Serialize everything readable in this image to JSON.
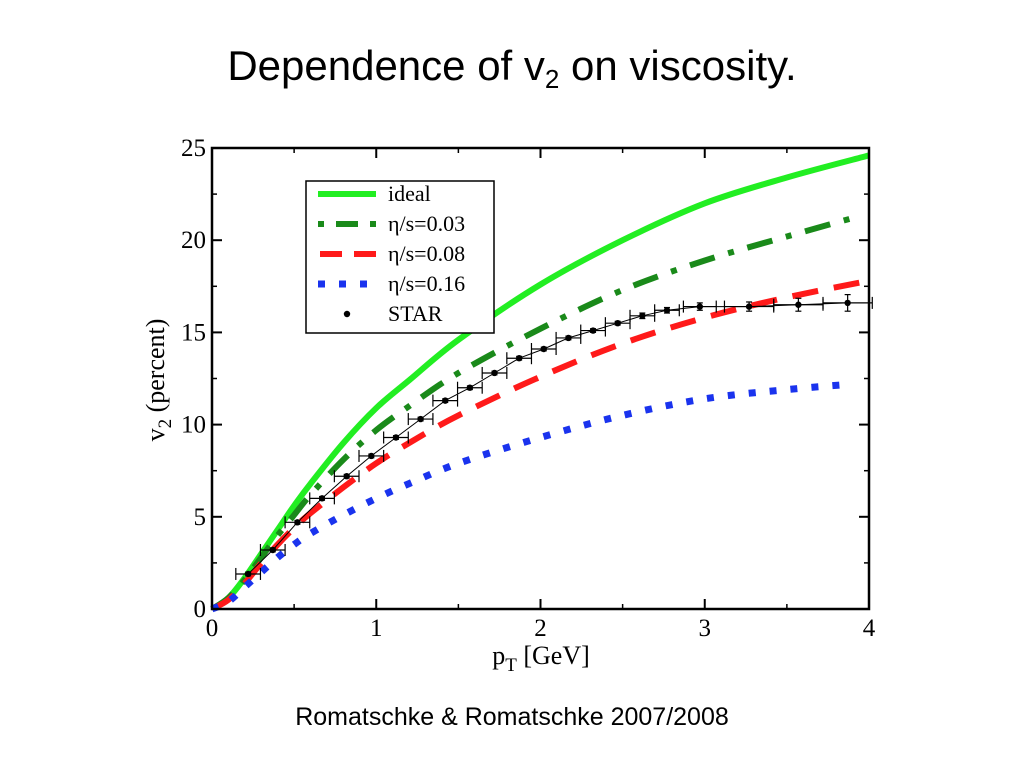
{
  "slide": {
    "title_main": "Dependence of v",
    "title_sub": "2",
    "title_rest": " on viscosity.",
    "caption": "Romatschke & Romatschke 2007/2008"
  },
  "chart_data": {
    "type": "line",
    "xlabel_main": "p",
    "xlabel_sub": "T",
    "xlabel_unit": " [GeV]",
    "ylabel_main": "v",
    "ylabel_sub": "2",
    "ylabel_unit": " (percent)",
    "xlim": [
      0,
      4
    ],
    "ylim": [
      0,
      25
    ],
    "x_ticks": [
      0,
      1,
      2,
      3,
      4
    ],
    "y_ticks": [
      0,
      5,
      10,
      15,
      20,
      25
    ],
    "grid": false,
    "legend_position": "top-left",
    "series": [
      {
        "name": "ideal",
        "color": "#22ee22",
        "style": "solid",
        "x": [
          0,
          0.1,
          0.2,
          0.3,
          0.4,
          0.5,
          0.6,
          0.8,
          1.0,
          1.2,
          1.5,
          2.0,
          2.5,
          3.0,
          3.5,
          4.0
        ],
        "y": [
          0,
          0.6,
          1.7,
          3.0,
          4.3,
          5.6,
          6.8,
          9.0,
          10.9,
          12.4,
          14.6,
          17.6,
          20.0,
          22.0,
          23.4,
          24.6
        ]
      },
      {
        "name": "η/s=0.03",
        "color": "#1a8a1a",
        "style": "dashdot",
        "x": [
          0,
          0.1,
          0.2,
          0.3,
          0.4,
          0.5,
          0.6,
          0.8,
          1.0,
          1.2,
          1.5,
          2.0,
          2.5,
          3.0,
          3.5,
          3.9
        ],
        "y": [
          0,
          0.6,
          1.6,
          2.8,
          4.0,
          5.1,
          6.2,
          8.1,
          9.7,
          11.0,
          12.8,
          15.2,
          17.3,
          18.9,
          20.2,
          21.2
        ]
      },
      {
        "name": "η/s=0.08",
        "color": "#ff1a1a",
        "style": "dashed",
        "x": [
          0,
          0.1,
          0.2,
          0.3,
          0.4,
          0.5,
          0.6,
          0.8,
          1.0,
          1.2,
          1.5,
          2.0,
          2.5,
          3.0,
          3.5,
          4.0
        ],
        "y": [
          0,
          0.5,
          1.4,
          2.5,
          3.5,
          4.4,
          5.2,
          6.6,
          7.9,
          9.0,
          10.5,
          12.6,
          14.4,
          15.8,
          16.9,
          17.8
        ]
      },
      {
        "name": "η/s=0.16",
        "color": "#1a33ee",
        "style": "dotted",
        "x": [
          0,
          0.1,
          0.2,
          0.3,
          0.4,
          0.5,
          0.6,
          0.8,
          1.0,
          1.2,
          1.5,
          2.0,
          2.5,
          3.0,
          3.5,
          3.9
        ],
        "y": [
          0,
          0.4,
          1.2,
          2.0,
          2.8,
          3.5,
          4.1,
          5.1,
          6.0,
          6.8,
          7.9,
          9.3,
          10.5,
          11.4,
          11.9,
          12.2
        ]
      },
      {
        "name": "STAR",
        "color": "#000000",
        "style": "markers",
        "x": [
          0.22,
          0.37,
          0.52,
          0.67,
          0.82,
          0.97,
          1.12,
          1.27,
          1.42,
          1.57,
          1.72,
          1.87,
          2.02,
          2.17,
          2.32,
          2.47,
          2.62,
          2.77,
          2.97,
          3.27,
          3.57,
          3.87
        ],
        "y": [
          1.9,
          3.2,
          4.7,
          6.0,
          7.2,
          8.3,
          9.3,
          10.3,
          11.3,
          12.0,
          12.8,
          13.6,
          14.1,
          14.7,
          15.1,
          15.5,
          15.9,
          16.2,
          16.4,
          16.4,
          16.5,
          16.6
        ],
        "yerr": [
          0.1,
          0.1,
          0.1,
          0.1,
          0.1,
          0.1,
          0.1,
          0.1,
          0.1,
          0.1,
          0.1,
          0.1,
          0.1,
          0.1,
          0.1,
          0.1,
          0.15,
          0.15,
          0.2,
          0.25,
          0.35,
          0.45
        ],
        "xerr": [
          0.075,
          0.075,
          0.075,
          0.075,
          0.075,
          0.075,
          0.075,
          0.075,
          0.075,
          0.075,
          0.075,
          0.075,
          0.075,
          0.075,
          0.075,
          0.075,
          0.075,
          0.075,
          0.1,
          0.15,
          0.15,
          0.15
        ]
      }
    ]
  }
}
